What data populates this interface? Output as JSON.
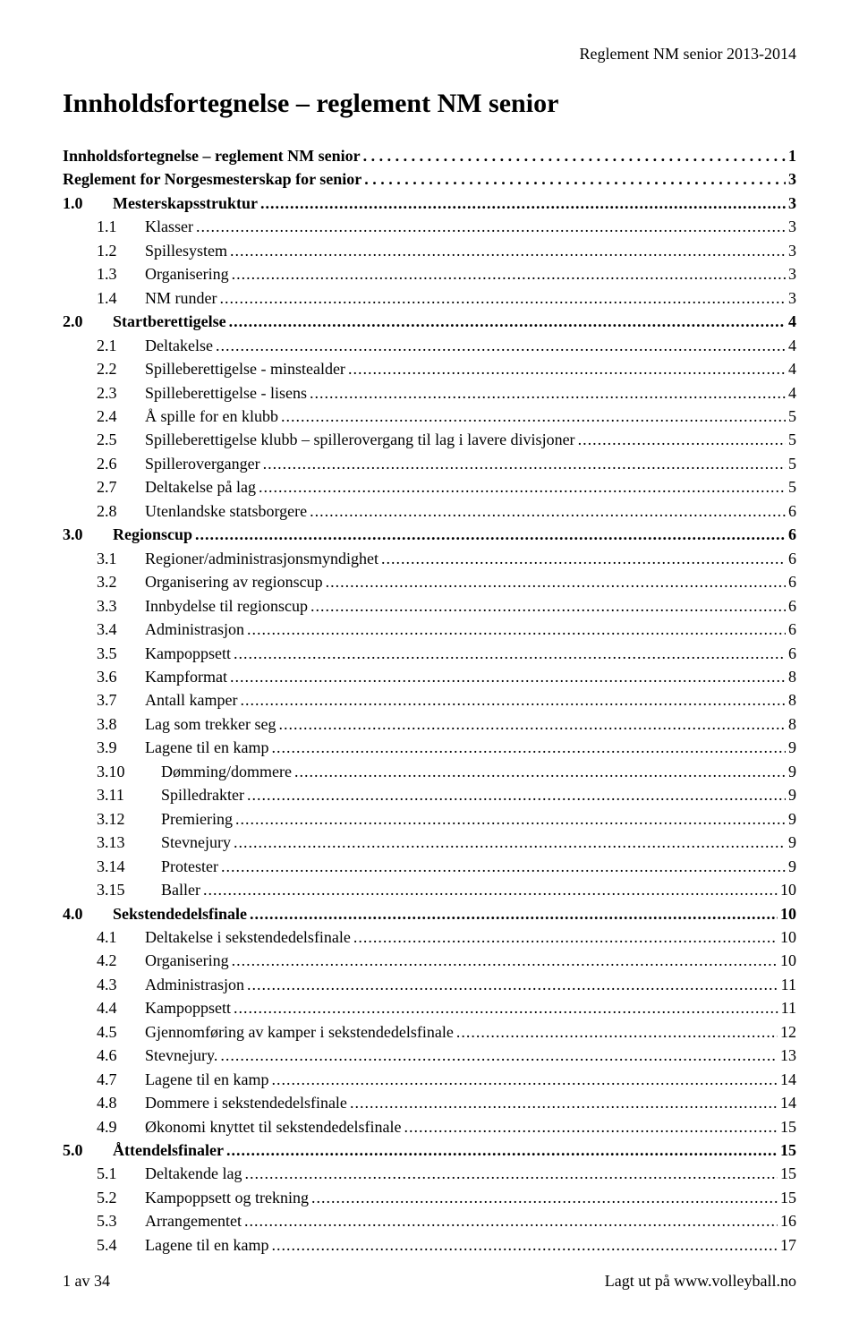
{
  "header_right": "Reglement NM senior 2013-2014",
  "title": "Innholdsfortegnelse – reglement NM senior",
  "toc": [
    {
      "num": "",
      "label": "Innholdsfortegnelse – reglement NM senior",
      "page": "1",
      "bold": true,
      "indent": 0,
      "spaced": true
    },
    {
      "num": "",
      "label": "Reglement for Norgesmesterskap for senior",
      "page": "3",
      "bold": true,
      "indent": 0,
      "spaced": true
    },
    {
      "num": "1.0",
      "label": "Mesterskapsstruktur",
      "page": "3",
      "bold": true,
      "indent": 1
    },
    {
      "num": "1.1",
      "label": "Klasser",
      "page": "3",
      "bold": false,
      "indent": 2
    },
    {
      "num": "1.2",
      "label": "Spillesystem",
      "page": "3",
      "bold": false,
      "indent": 2
    },
    {
      "num": "1.3",
      "label": "Organisering",
      "page": "3",
      "bold": false,
      "indent": 2
    },
    {
      "num": "1.4",
      "label": "NM runder",
      "page": "3",
      "bold": false,
      "indent": 2
    },
    {
      "num": "2.0",
      "label": "Startberettigelse",
      "page": "4",
      "bold": true,
      "indent": 1
    },
    {
      "num": "2.1",
      "label": "Deltakelse",
      "page": "4",
      "bold": false,
      "indent": 2
    },
    {
      "num": "2.2",
      "label": "Spilleberettigelse - minstealder",
      "page": "4",
      "bold": false,
      "indent": 2
    },
    {
      "num": "2.3",
      "label": "Spilleberettigelse - lisens",
      "page": "4",
      "bold": false,
      "indent": 2
    },
    {
      "num": "2.4",
      "label": "Å spille for en klubb",
      "page": "5",
      "bold": false,
      "indent": 2
    },
    {
      "num": "2.5",
      "label": "Spilleberettigelse klubb – spillerovergang til lag i lavere divisjoner",
      "page": "5",
      "bold": false,
      "indent": 2
    },
    {
      "num": "2.6",
      "label": "Spilleroverganger",
      "page": "5",
      "bold": false,
      "indent": 2
    },
    {
      "num": "2.7",
      "label": "Deltakelse på lag",
      "page": "5",
      "bold": false,
      "indent": 2
    },
    {
      "num": "2.8",
      "label": "Utenlandske statsborgere",
      "page": "6",
      "bold": false,
      "indent": 2
    },
    {
      "num": "3.0",
      "label": "Regionscup",
      "page": "6",
      "bold": true,
      "indent": 1
    },
    {
      "num": "3.1",
      "label": "Regioner/administrasjonsmyndighet",
      "page": "6",
      "bold": false,
      "indent": 2
    },
    {
      "num": "3.2",
      "label": "Organisering av regionscup",
      "page": "6",
      "bold": false,
      "indent": 2
    },
    {
      "num": "3.3",
      "label": "Innbydelse til regionscup",
      "page": "6",
      "bold": false,
      "indent": 2
    },
    {
      "num": "3.4",
      "label": "Administrasjon",
      "page": "6",
      "bold": false,
      "indent": 2
    },
    {
      "num": "3.5",
      "label": "Kampoppsett",
      "page": "6",
      "bold": false,
      "indent": 2
    },
    {
      "num": "3.6",
      "label": "Kampformat",
      "page": "8",
      "bold": false,
      "indent": 2
    },
    {
      "num": "3.7",
      "label": "Antall kamper",
      "page": "8",
      "bold": false,
      "indent": 2
    },
    {
      "num": "3.8",
      "label": "Lag som trekker seg",
      "page": "8",
      "bold": false,
      "indent": 2
    },
    {
      "num": "3.9",
      "label": "Lagene til en kamp",
      "page": "9",
      "bold": false,
      "indent": 2
    },
    {
      "num": "3.10",
      "label": "Dømming/dommere",
      "page": "9",
      "bold": false,
      "indent": 3
    },
    {
      "num": "3.11",
      "label": "Spilledrakter",
      "page": "9",
      "bold": false,
      "indent": 3
    },
    {
      "num": "3.12",
      "label": "Premiering",
      "page": "9",
      "bold": false,
      "indent": 3
    },
    {
      "num": "3.13",
      "label": "Stevnejury",
      "page": "9",
      "bold": false,
      "indent": 3
    },
    {
      "num": "3.14",
      "label": "Protester",
      "page": "9",
      "bold": false,
      "indent": 3
    },
    {
      "num": "3.15",
      "label": "Baller",
      "page": "10",
      "bold": false,
      "indent": 3
    },
    {
      "num": "4.0",
      "label": "Sekstendedelsfinale",
      "page": "10",
      "bold": true,
      "indent": 1
    },
    {
      "num": "4.1",
      "label": "Deltakelse i sekstendedelsfinale",
      "page": "10",
      "bold": false,
      "indent": 2
    },
    {
      "num": "4.2",
      "label": "Organisering",
      "page": "10",
      "bold": false,
      "indent": 2
    },
    {
      "num": "4.3",
      "label": "Administrasjon",
      "page": "11",
      "bold": false,
      "indent": 2
    },
    {
      "num": "4.4",
      "label": "Kampoppsett",
      "page": "11",
      "bold": false,
      "indent": 2
    },
    {
      "num": "4.5",
      "label": "Gjennomføring av kamper i sekstendedelsfinale",
      "page": "12",
      "bold": false,
      "indent": 2
    },
    {
      "num": "4.6",
      "label": "Stevnejury.",
      "page": "13",
      "bold": false,
      "indent": 2
    },
    {
      "num": "4.7",
      "label": "Lagene til en kamp",
      "page": "14",
      "bold": false,
      "indent": 2
    },
    {
      "num": "4.8",
      "label": "Dommere i sekstendedelsfinale",
      "page": "14",
      "bold": false,
      "indent": 2
    },
    {
      "num": "4.9",
      "label": "Økonomi knyttet til sekstendedelsfinale",
      "page": "15",
      "bold": false,
      "indent": 2
    },
    {
      "num": "5.0",
      "label": "Åttendelsfinaler",
      "page": "15",
      "bold": true,
      "indent": 1
    },
    {
      "num": "5.1",
      "label": "Deltakende lag",
      "page": "15",
      "bold": false,
      "indent": 2
    },
    {
      "num": "5.2",
      "label": "Kampoppsett og trekning",
      "page": "15",
      "bold": false,
      "indent": 2
    },
    {
      "num": "5.3",
      "label": "Arrangementet",
      "page": "16",
      "bold": false,
      "indent": 2
    },
    {
      "num": "5.4",
      "label": "Lagene til en kamp",
      "page": "17",
      "bold": false,
      "indent": 2
    }
  ],
  "footer_left": "1 av 34",
  "footer_right": "Lagt ut på www.volleyball.no"
}
